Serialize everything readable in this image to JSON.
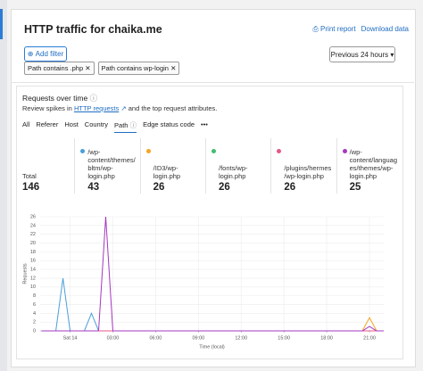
{
  "header": {
    "title": "HTTP traffic for chaika.me",
    "links": [
      "Print report",
      "Download data"
    ]
  },
  "filters": {
    "add": "Add filter",
    "chips": [
      "Path contains .php",
      "Path contains wp-login"
    ],
    "range": "Previous 24 hours"
  },
  "section": {
    "title": "Requests over time",
    "description_before": "Review spikes in",
    "link": "HTTP requests",
    "description_after": "and the top request attributes.",
    "tabs": [
      "All",
      "Referer",
      "Host",
      "Country",
      "Path",
      "Edge status code"
    ],
    "total_label": "Total",
    "total": 146
  },
  "chart_data": {
    "type": "line",
    "xlabel": "Time (local)",
    "ylabel": "Requests",
    "x": [
      -2,
      -1,
      -0.5,
      0,
      1,
      1.5,
      2,
      2.5,
      3,
      20.5,
      21,
      21.5,
      22
    ],
    "xlim": [
      -2.1,
      22
    ],
    "ylim": [
      0,
      26
    ],
    "xticks": [
      {
        "value": 0,
        "label": "Sat 14"
      },
      {
        "value": 3,
        "label": "03:00"
      },
      {
        "value": 6,
        "label": "06:00"
      },
      {
        "value": 9,
        "label": "09:00"
      },
      {
        "value": 12,
        "label": "12:00"
      },
      {
        "value": 15,
        "label": "15:00"
      },
      {
        "value": 18,
        "label": "18:00"
      },
      {
        "value": 21,
        "label": "21:00"
      }
    ],
    "yticks": [
      0,
      2,
      4,
      6,
      8,
      10,
      12,
      14,
      16,
      18,
      20,
      22,
      24,
      26
    ],
    "grid": true,
    "series": [
      {
        "name": "/wp-content/themes/bltm/wp-login.php",
        "color": "#4a9fd8",
        "total": 43,
        "values": [
          0,
          0,
          12,
          0,
          0,
          4,
          0,
          0,
          0,
          0,
          0,
          0,
          0
        ]
      },
      {
        "name": "/ID3/wp-login.php",
        "color": "#f5a623",
        "total": 26,
        "values": [
          0,
          0,
          0,
          0,
          0,
          0,
          0,
          0,
          0,
          0,
          3,
          0,
          0
        ]
      },
      {
        "name": "/fonts/wp-login.php",
        "color": "#3fbf6f",
        "total": 26,
        "values": [
          0,
          0,
          0,
          0,
          0,
          0,
          0,
          0,
          0,
          0,
          0,
          0,
          0
        ]
      },
      {
        "name": "/plugins/hermes/wp-login.php",
        "color": "#e8558a",
        "total": 26,
        "values": [
          0,
          0,
          0,
          0,
          0,
          0,
          0,
          0,
          0,
          0,
          0,
          0,
          0
        ]
      },
      {
        "name": "/wp-content/languages/themes/wp-login.php",
        "color": "#a637c0",
        "total": 25,
        "values": [
          0,
          0,
          0,
          0,
          0,
          0,
          0,
          26,
          0,
          0,
          1,
          0,
          0
        ]
      }
    ]
  }
}
